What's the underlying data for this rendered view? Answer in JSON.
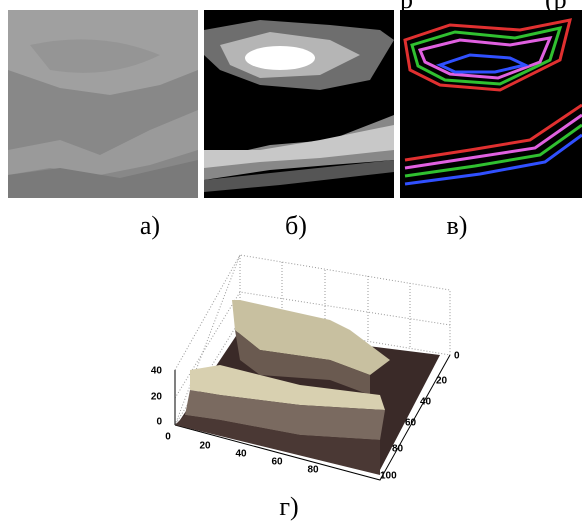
{
  "header": {
    "fragments": [
      "р",
      "(р"
    ]
  },
  "panels": [
    {
      "label": "а)"
    },
    {
      "label": "б)"
    },
    {
      "label": "в)"
    },
    {
      "label": "г)"
    }
  ],
  "plot": {
    "z_ticks": [
      "0",
      "20",
      "40"
    ],
    "x_ticks": [
      "0",
      "20",
      "40",
      "60",
      "80"
    ],
    "y_ticks": [
      "0",
      "20",
      "40",
      "60",
      "80",
      "100"
    ]
  }
}
